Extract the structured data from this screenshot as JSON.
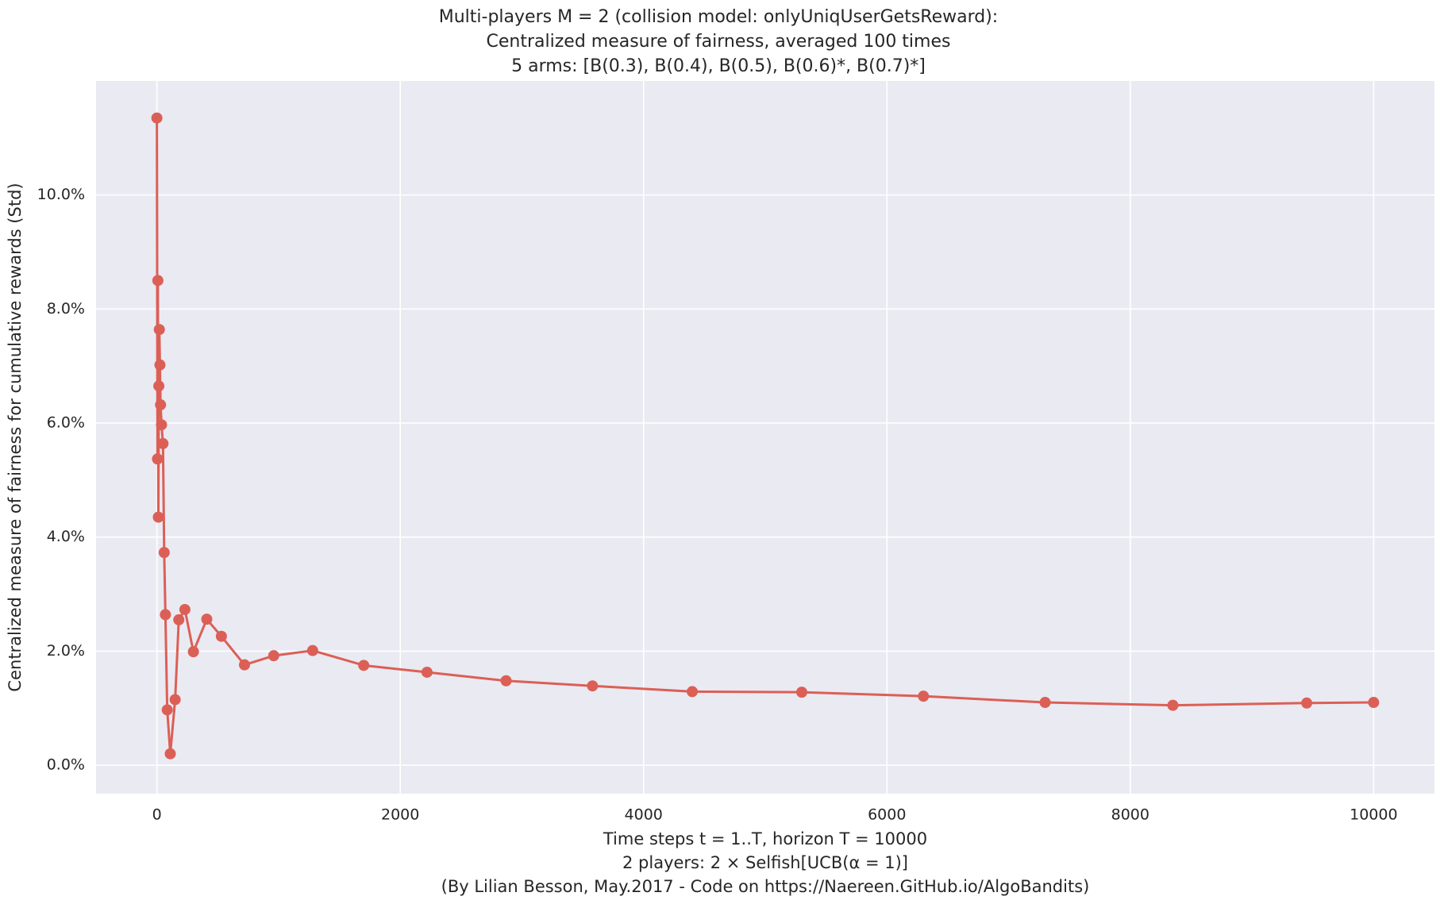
{
  "chart_data": {
    "type": "line",
    "title": [
      "Multi-players M = 2 (collision model: onlyUniqUserGetsReward):",
      "Centralized measure of fairness, averaged 100 times",
      "5 arms: [B(0.3), B(0.4), B(0.5), B(0.6)*, B(0.7)*]"
    ],
    "xlabel": [
      "Time steps t = 1..T, horizon T = 10000",
      "2 players: 2 × Selfish[UCB(α = 1)]",
      "(By Lilian Besson, May.2017 - Code on https://Naereen.GitHub.io/AlgoBandits)"
    ],
    "ylabel": "Centralized measure of fairness for cumulative rewards (Std)",
    "x": [
      0,
      5,
      8,
      12,
      16,
      20,
      25,
      30,
      38,
      50,
      60,
      70,
      85,
      110,
      150,
      180,
      230,
      300,
      410,
      530,
      720,
      960,
      1280,
      1700,
      2220,
      2870,
      3580,
      4400,
      5300,
      6300,
      7300,
      8350,
      9450,
      10000
    ],
    "series": [
      {
        "color": "#dc5f56",
        "values": [
          11.35,
          5.37,
          8.5,
          4.35,
          6.65,
          7.64,
          7.02,
          6.32,
          5.97,
          5.64,
          3.73,
          2.64,
          0.97,
          0.2,
          1.15,
          2.55,
          2.73,
          1.99,
          2.56,
          2.26,
          1.76,
          1.92,
          2.01,
          1.75,
          1.63,
          1.48,
          1.39,
          1.29,
          1.28,
          1.21,
          1.1,
          1.05,
          1.09,
          1.1
        ]
      }
    ],
    "xlim": [
      -500,
      10500
    ],
    "ylim": [
      -0.5,
      12
    ],
    "xticks": [
      0,
      2000,
      4000,
      6000,
      8000,
      10000
    ],
    "yticks": [
      {
        "value": 0,
        "label": "0.0%"
      },
      {
        "value": 2,
        "label": "2.0%"
      },
      {
        "value": 4,
        "label": "4.0%"
      },
      {
        "value": 6,
        "label": "6.0%"
      },
      {
        "value": 8,
        "label": "8.0%"
      },
      {
        "value": 10,
        "label": "10.0%"
      }
    ],
    "grid": true
  }
}
